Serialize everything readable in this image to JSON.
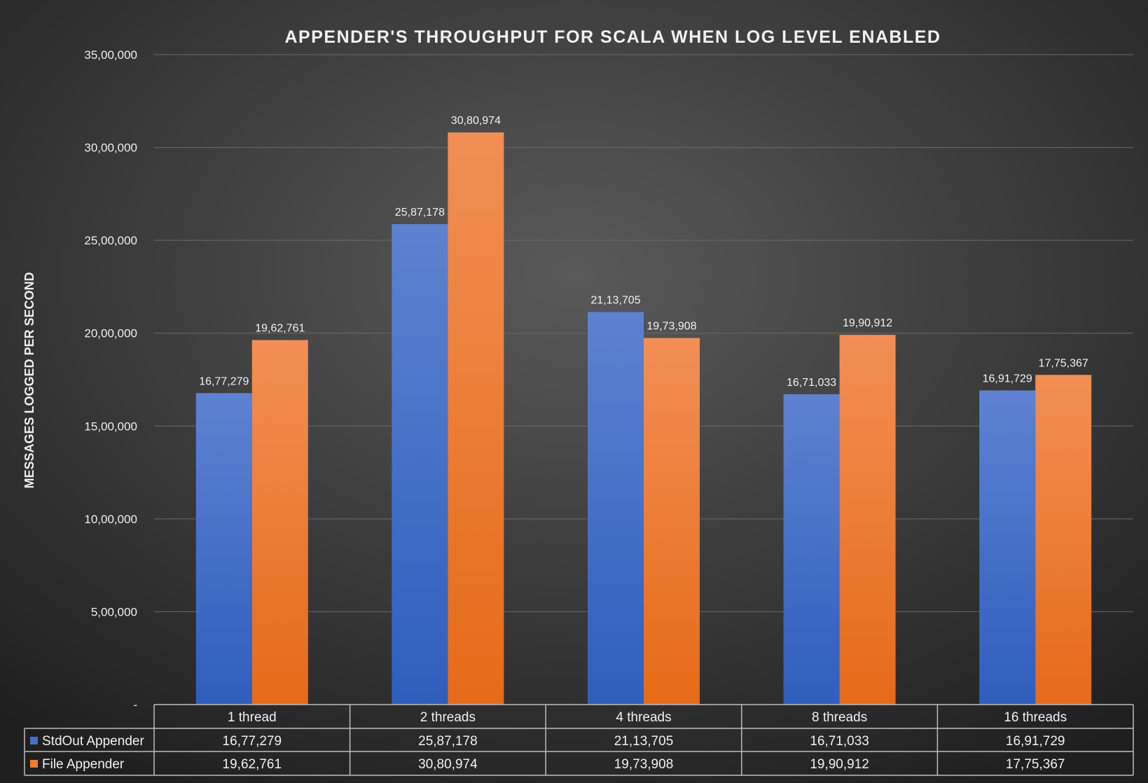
{
  "chart_data": {
    "type": "bar",
    "title": "APPENDER'S THROUGHPUT FOR SCALA WHEN LOG LEVEL ENABLED",
    "xlabel": "",
    "ylabel": "MESSAGES LOGGED PER SECOND",
    "ylim": [
      0,
      3500000
    ],
    "yticks": [
      0,
      500000,
      1000000,
      1500000,
      2000000,
      2500000,
      3000000,
      3500000
    ],
    "ytick_labels": [
      "-",
      "5,00,000",
      "10,00,000",
      "15,00,000",
      "20,00,000",
      "25,00,000",
      "30,00,000",
      "35,00,000"
    ],
    "grid": true,
    "legend": "data-table",
    "categories": [
      "1 thread",
      "2 threads",
      "4 threads",
      "8 threads",
      "16 threads"
    ],
    "series": [
      {
        "name": "StdOut Appender",
        "color": "#4472c4",
        "values": [
          1677279,
          2587178,
          2113705,
          1671033,
          1691729
        ],
        "labels": [
          "16,77,279",
          "25,87,178",
          "21,13,705",
          "16,71,033",
          "16,91,729"
        ]
      },
      {
        "name": "File Appender",
        "color": "#ed7d31",
        "values": [
          1962761,
          3080974,
          1973908,
          1990912,
          1775367
        ],
        "labels": [
          "19,62,761",
          "30,80,974",
          "19,73,908",
          "19,90,912",
          "17,75,367"
        ]
      }
    ]
  }
}
